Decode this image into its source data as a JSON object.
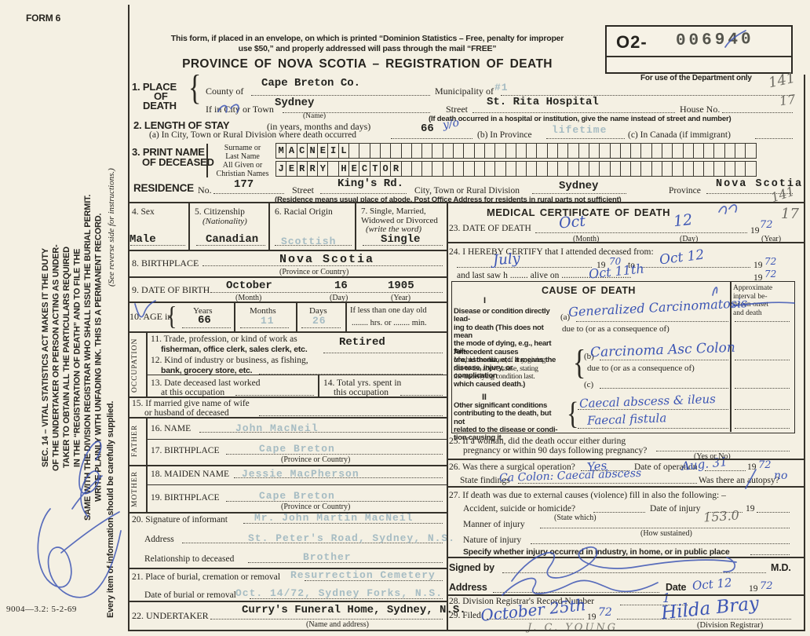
{
  "glyphs": {
    "brace": "{"
  },
  "page": {
    "form_code": "FORM 6",
    "footer_code": "9004—3.2: 5-2-69"
  },
  "sidebar": {
    "sec14_lines": [
      "SEC. 14 – VITAL STATISTICS ACT MAKES IT THE DUTY",
      "OF THE UNDERTAKER OR PERSON ACTING AS UNDER-",
      "TAKER TO OBTAIN ALL THE PARTICULARS REQUIRED",
      "IN THE “REGISTRATION OF DEATH” AND TO FILE THE",
      "SAME WITH THE DIVISION REGISTRAR WHO SHALL ISSUE THE BURIAL PERMIT.",
      "WRITE PLAINLY WITH UNFADING INK. THIS IS A PERMANENT RECORD."
    ],
    "reverse_note": "(See reverse side for instructions.)",
    "supply_note": "Every item of information should be carefully supplied."
  },
  "header": {
    "notice1": "This form, if placed in an envelope, on which is printed “Dominion Statistics – Free, penalty for improper",
    "notice2": "use $50,” and properly addressed will pass through the mail “FREE”",
    "title": "PROVINCE OF NOVA SCOTIA – REGISTRATION OF DEATH",
    "reg_prefix": "O2-",
    "reg_number": "006940",
    "dept_note": "For use of the Department only"
  },
  "pencil": {
    "a141": "141",
    "a17": "17",
    "b141": "141",
    "b17": "17",
    "icd": "153.0",
    "young": "J. C. YOUNG"
  },
  "item1": {
    "label1": "1. PLACE",
    "label2": "OF",
    "label3": "DEATH",
    "county_label": "County of",
    "county_value": "Cape Breton Co.",
    "municipality_label": "Municipality of",
    "municipality_value": "#1",
    "city_label": "If in City or Town",
    "city_value": "Sydney",
    "city_caption": "(Name)",
    "street_label": "Street",
    "street_value": "St. Rita Hospital",
    "house_label": "House No.",
    "house_value": "17",
    "street_caption": "(If death occurred in a hospital or institution, give the name instead of street and number)"
  },
  "item2": {
    "label": "2. LENGTH OF STAY",
    "label_paren": "(in years, months and days)",
    "a_label": "(a) In City, Town or Rural Division where death occurred",
    "a_value_typed": "66",
    "a_value_hand": "y/o",
    "b_label": "(b) In Province",
    "b_value": "lifetime",
    "c_label": "(c) In Canada (if immigrant)"
  },
  "item3": {
    "label1": "3. PRINT NAME",
    "label2": "OF DECEASED",
    "surname_label1": "Surname or",
    "surname_label2": "Last Name",
    "given_label1": "All Given or",
    "given_label2": "Christian Names",
    "surname": "MACNEIL",
    "given": "JERRY HECTOR"
  },
  "residence": {
    "label": "RESIDENCE",
    "no_label": "No.",
    "no_value": "177",
    "street_label": "Street",
    "street_value": "King's Rd.",
    "city_label": "City, Town or Rural Division",
    "city_value": "Sydney",
    "province_label": "Province",
    "province_value": "Nova Scotia",
    "caption": "(Residence means usual place of abode. Post Office Address for residents in rural parts not sufficient)"
  },
  "item4": {
    "label": "4. Sex",
    "value": "Male"
  },
  "item5": {
    "label": "5. Citizenship",
    "label2": "(Nationality)",
    "value": "Canadian"
  },
  "item6": {
    "label": "6. Racial Origin",
    "value": "Scottish"
  },
  "item7": {
    "label": "7. Single, Married,",
    "label2": "Widowed or Divorced",
    "label3": "(write the word)",
    "value": "Single"
  },
  "item8": {
    "label": "8. BIRTHPLACE",
    "value": "Nova Scotia",
    "caption": "(Province or Country)"
  },
  "item9": {
    "label": "9. DATE OF BIRTH",
    "month": "October",
    "month_cap": "(Month)",
    "day": "16",
    "day_cap": "(Day)",
    "year": "1905",
    "year_cap": "(Year)"
  },
  "item10": {
    "label": "10. AGE in",
    "years_label": "Years",
    "years": "66",
    "months_label": "Months",
    "months": "11",
    "days_label": "Days",
    "days": "26",
    "less_label": "If less than one day old",
    "hrs_label": "hrs. or",
    "min_label": "min."
  },
  "occupation": {
    "side": "OCCUPATION",
    "l11a": "11. Trade, profession, or kind of work as",
    "l11b": "fisherman, office clerk, sales clerk, etc.",
    "v11": "Retired",
    "l12a": "12. Kind of industry or business, as fishing,",
    "l12b": "bank, grocery store, etc.",
    "l13a": "13. Date deceased last worked",
    "l13b": "at this occupation",
    "l14a": "14. Total yrs. spent in",
    "l14b": "this occupation"
  },
  "item15": {
    "l1": "15. If married give name of wife",
    "l2": "or husband of deceased"
  },
  "father": {
    "side": "FATHER",
    "name_label": "16. NAME",
    "name": "John MacNeil",
    "bp_label": "17. BIRTHPLACE",
    "bp": "Cape Breton",
    "cap": "(Province or Country)"
  },
  "mother": {
    "side": "MOTHER",
    "mn_label": "18. MAIDEN NAME",
    "mn": "Jessie MacPherson",
    "bp_label": "19. BIRTHPLACE",
    "bp": "Cape Breton",
    "cap": "(Province or Country)"
  },
  "item20": {
    "sig_label": "20. Signature of informant",
    "sig": "Mr. John Martin MacNeil",
    "addr_label": "Address",
    "addr": "St. Peter's Road, Sydney, N.S.",
    "rel_label": "Relationship to deceased",
    "rel": "Brother"
  },
  "item21": {
    "place_label": "21. Place of burial, cremation or removal",
    "place": "Resurrection Cemetery",
    "date_label": "Date of burial or removal",
    "date": "Oct. 14/72, Sydney Forks, N.S."
  },
  "item22": {
    "label": "22. UNDERTAKER",
    "value": "Curry's Funeral Home, Sydney, N.S.",
    "cap": "(Name and address)"
  },
  "medical": {
    "title": "MEDICAL CERTIFICATE OF DEATH",
    "i23": {
      "label": "23. DATE OF DEATH",
      "month": "Oct",
      "month_cap": "(Month)",
      "day": "12",
      "day_cap": "(Day)",
      "y19": "19",
      "year": "72",
      "year_cap": "(Year)"
    },
    "i24": {
      "l1": "24. I HEREBY CERTIFY that I attended deceased from:",
      "from": "July",
      "y19": "19",
      "from_y": "70",
      "to_word": "to",
      "to": "Oct 12",
      "to_y": "72",
      "l2a": "and last saw h",
      "l2b": "alive on",
      "saw": "Oct 11th",
      "saw_y": "72"
    },
    "cause": {
      "title": "CAUSE OF DEATH",
      "interval": [
        "Approximate",
        "interval be-",
        "tween onset",
        "and death"
      ],
      "sec1": "I",
      "disease_lines": [
        "Disease or condition directly lead-",
        "ing to death (This does not mean",
        "the mode of dying, e.g., heart fail-",
        "ure, asthenia, etc. It means the",
        "disease, injury, or complication",
        "which caused death.)"
      ],
      "a_label": "(a)",
      "a_value": "Generalized Carcinomatosis",
      "due_to": "due to (or as a consequence of)",
      "antecedent_lines": [
        "Antecedent causes",
        "Morbid conditions, if any, giving",
        "rise to the above cause, stating",
        "the underlying condition last."
      ],
      "b_label": "(b)",
      "b_value": "Carcinoma Asc Colon",
      "c_label": "(c)",
      "sec2": "II",
      "other_lines": [
        "Other significant conditions",
        "contributing to the death, but not",
        "related to the disease or condi-",
        "tion causing it."
      ],
      "other_value1": "Caecal abscess & ileus",
      "other_value2": "Faecal fistula"
    },
    "i25": {
      "l1": "25. If a woman, did the death occur either during",
      "l2": "pregnancy or within 90 days following pregnancy?",
      "cap": "(Yes or No)"
    },
    "i26": {
      "l1": "26. Was there a surgical operation?",
      "v1": "Yes",
      "l2": "Date of operation",
      "v2": "Aug. 31",
      "y19": "19",
      "v2y": "72",
      "l3": "State findings",
      "v3": "Ca Colon: Caecal abscess",
      "l4": "Was there an autopsy?",
      "v4": "no"
    },
    "i27": {
      "l1": "27. If death was due to external causes (violence) fill in also the following: –",
      "l2": "Accident, suicide or homicide?",
      "cap2": "(State which)",
      "l3": "Date of injury",
      "y19": "19",
      "l4": "Manner of injury",
      "cap4": "(How sustained)",
      "l5": "Nature of injury",
      "l6": "Specify whether injury occurred in industry, in home, or in public place"
    },
    "signed": {
      "label": "Signed by",
      "md": "M.D.",
      "addr_label": "Address",
      "date_label": "Date",
      "date": "Oct 12",
      "y19": "19",
      "year": "72"
    },
    "i28": {
      "label": "28. Division Registrar's Record Number",
      "value": "1"
    },
    "i29": {
      "label": "29. Filed",
      "date": "October 25th",
      "y19": "19",
      "year": "72",
      "registrar": "Hilda Bray",
      "cap": "(Division Registrar)"
    }
  }
}
